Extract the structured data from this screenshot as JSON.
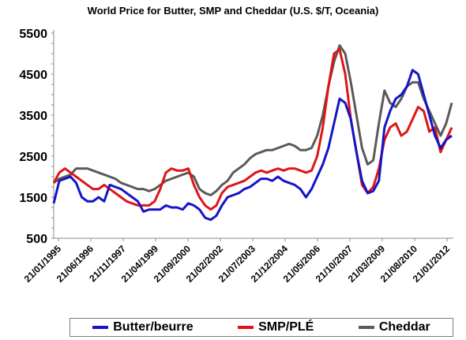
{
  "chart_data": {
    "type": "line",
    "title": "World Price for Butter, SMP and Cheddar (U.S. $/T, Oceania)",
    "xlabel": "",
    "ylabel": "",
    "ylim": [
      500,
      5500
    ],
    "yticks": [
      500,
      1500,
      2500,
      3500,
      4500,
      5500
    ],
    "xticks": [
      "21/01/1995",
      "21/06/1996",
      "21/11/1997",
      "21/04/1999",
      "21/09/2000",
      "21/02/2002",
      "21/07/2003",
      "21/12/2004",
      "21/05/2006",
      "21/10/2007",
      "21/03/2009",
      "21/08/2010",
      "21/01/2012"
    ],
    "grid": false,
    "legend_position": "bottom",
    "x": [
      "1995-01",
      "1995-04",
      "1995-07",
      "1995-10",
      "1996-01",
      "1996-04",
      "1996-07",
      "1996-10",
      "1997-01",
      "1997-04",
      "1997-07",
      "1997-10",
      "1998-01",
      "1998-04",
      "1998-07",
      "1998-10",
      "1999-01",
      "1999-04",
      "1999-07",
      "1999-10",
      "2000-01",
      "2000-04",
      "2000-07",
      "2000-10",
      "2001-01",
      "2001-04",
      "2001-07",
      "2001-10",
      "2002-01",
      "2002-04",
      "2002-07",
      "2002-10",
      "2003-01",
      "2003-04",
      "2003-07",
      "2003-10",
      "2004-01",
      "2004-04",
      "2004-07",
      "2004-10",
      "2005-01",
      "2005-04",
      "2005-07",
      "2005-10",
      "2006-01",
      "2006-04",
      "2006-07",
      "2006-10",
      "2007-01",
      "2007-04",
      "2007-07",
      "2007-10",
      "2008-01",
      "2008-04",
      "2008-07",
      "2008-10",
      "2009-01",
      "2009-04",
      "2009-07",
      "2009-10",
      "2010-01",
      "2010-04",
      "2010-07",
      "2010-10",
      "2011-01",
      "2011-04",
      "2011-07",
      "2011-10",
      "2012-01",
      "2012-04",
      "2012-07",
      "2012-10"
    ],
    "series": [
      {
        "name": "Butter/beurre",
        "color": "#1414c8",
        "values": [
          1350,
          1900,
          1950,
          2000,
          1850,
          1500,
          1400,
          1400,
          1500,
          1400,
          1800,
          1750,
          1700,
          1600,
          1500,
          1400,
          1150,
          1200,
          1200,
          1200,
          1300,
          1250,
          1250,
          1200,
          1350,
          1300,
          1200,
          1000,
          950,
          1050,
          1300,
          1500,
          1550,
          1600,
          1700,
          1750,
          1850,
          1950,
          1950,
          1900,
          2000,
          1900,
          1850,
          1800,
          1700,
          1500,
          1700,
          2000,
          2300,
          2700,
          3300,
          3900,
          3800,
          3400,
          2600,
          1900,
          1600,
          1650,
          1900,
          3200,
          3600,
          3900,
          4000,
          4200,
          4600,
          4500,
          4000,
          3500,
          3000,
          2700,
          2900,
          3000
        ]
      },
      {
        "name": "SMP/PLÉ",
        "color": "#e01414",
        "values": [
          1850,
          2100,
          2200,
          2100,
          2000,
          1900,
          1800,
          1700,
          1700,
          1800,
          1700,
          1600,
          1500,
          1400,
          1350,
          1300,
          1300,
          1300,
          1400,
          1700,
          2100,
          2200,
          2150,
          2150,
          2200,
          1800,
          1500,
          1300,
          1200,
          1300,
          1600,
          1750,
          1800,
          1850,
          1900,
          2000,
          2100,
          2150,
          2100,
          2150,
          2200,
          2150,
          2200,
          2200,
          2150,
          2100,
          2150,
          2500,
          3200,
          4200,
          5000,
          5100,
          4500,
          3400,
          2600,
          1800,
          1600,
          1750,
          2200,
          2900,
          3200,
          3300,
          3000,
          3100,
          3400,
          3700,
          3600,
          3100,
          3200,
          2600,
          2900,
          3200
        ]
      },
      {
        "name": "Cheddar",
        "color": "#5a5a5a",
        "values": [
          1850,
          1950,
          2000,
          2050,
          2200,
          2200,
          2200,
          2150,
          2100,
          2050,
          2000,
          1950,
          1850,
          1800,
          1750,
          1700,
          1700,
          1650,
          1700,
          1800,
          1900,
          1950,
          2000,
          2050,
          2100,
          2000,
          1700,
          1600,
          1550,
          1650,
          1800,
          1900,
          2100,
          2200,
          2300,
          2450,
          2550,
          2600,
          2650,
          2650,
          2700,
          2750,
          2800,
          2750,
          2650,
          2650,
          2700,
          3000,
          3500,
          4200,
          4800,
          5200,
          5000,
          4300,
          3500,
          2700,
          2300,
          2400,
          3300,
          4100,
          3800,
          3700,
          3900,
          4200,
          4300,
          4300,
          3900,
          3600,
          3300,
          3000,
          3300,
          3800
        ]
      }
    ]
  }
}
